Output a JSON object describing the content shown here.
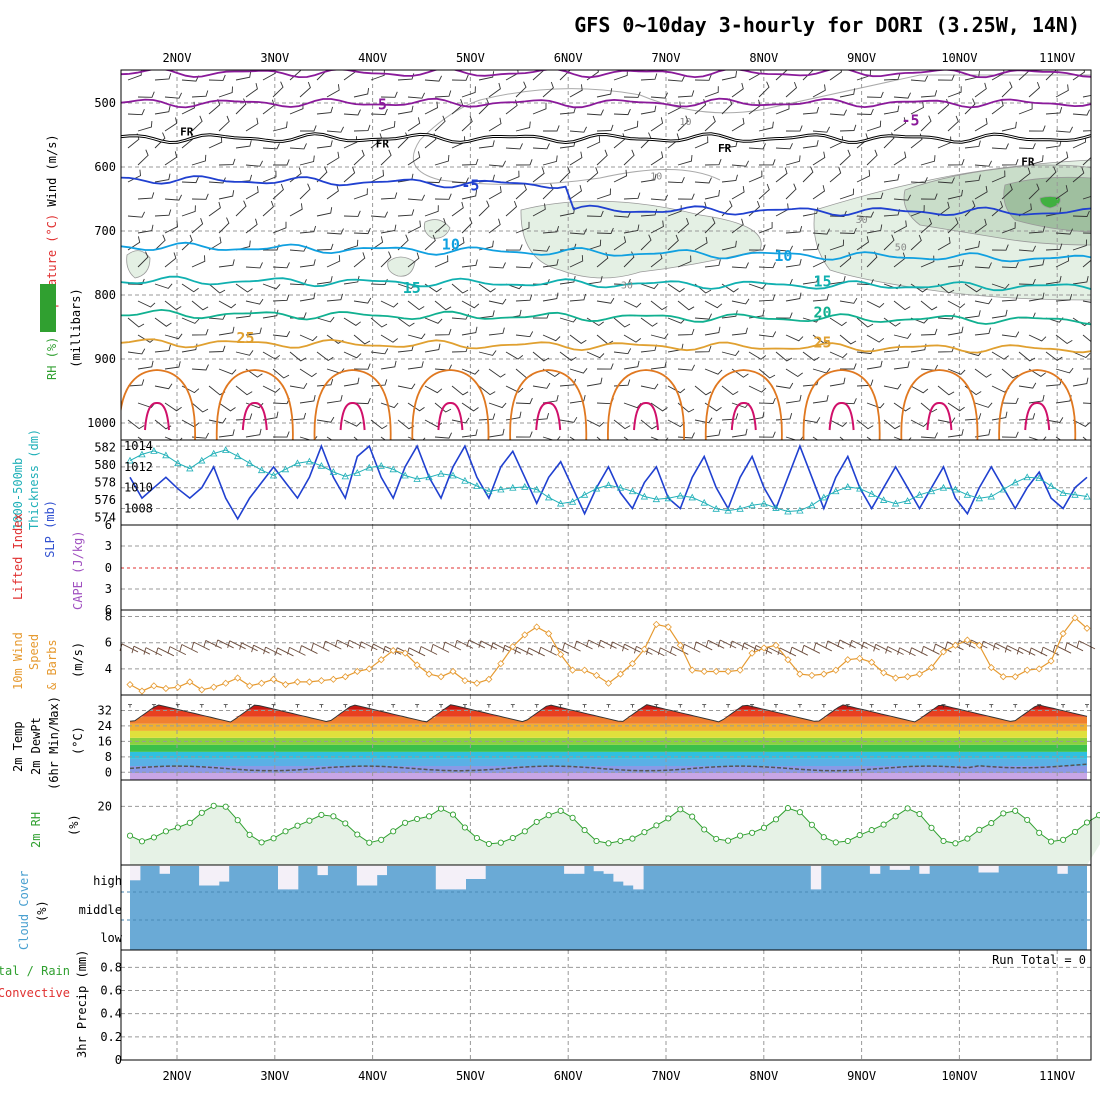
{
  "chart_data": {
    "type": "meteogram",
    "title": "GFS 0~10day 3-hourly for DORI (3.25W, 14N)",
    "x_labels": [
      "2NOV",
      "3NOV",
      "4NOV",
      "5NOV",
      "6NOV",
      "7NOV",
      "8NOV",
      "9NOV",
      "10NOV",
      "11NOV"
    ],
    "colors": {
      "green": "#30a030",
      "orange": "#e69a30",
      "red": "#e03030",
      "blue": "#3050d0",
      "cyan": "#20b0b8",
      "purple": "#a050c0",
      "cloud": "#6aaad6",
      "rh_fill": "#e6f2e6"
    },
    "upper_air": {
      "y_label_segments": [
        {
          "text": "RH (%)",
          "color": "#30a030"
        },
        {
          "text": "Temperature (°C)",
          "color": "#e03030"
        },
        {
          "text": "Wind (m/s)",
          "color": "#000000"
        }
      ],
      "y_label_2": "(millibars)",
      "pressure_ticks": [
        500,
        600,
        700,
        800,
        900,
        1000
      ],
      "contour_labels": [
        {
          "text": "5",
          "p": 503,
          "day": 2.1,
          "color": "#8a1a9a"
        },
        {
          "text": "-5",
          "p": 528,
          "day": 7.5,
          "color": "#8a1a9a"
        },
        {
          "text": "FR",
          "p": 546,
          "day": 0.1,
          "color": "#000000"
        },
        {
          "text": "FR",
          "p": 565,
          "day": 2.1,
          "color": "#000000"
        },
        {
          "text": "FR",
          "p": 572,
          "day": 5.6,
          "color": "#000000"
        },
        {
          "text": "FR",
          "p": 593,
          "day": 8.7,
          "color": "#000000"
        },
        {
          "text": "-5",
          "p": 630,
          "day": 3.0,
          "color": "#2040d0"
        },
        {
          "text": "10",
          "p": 722,
          "day": 2.8,
          "color": "#10a0e0"
        },
        {
          "text": "10",
          "p": 740,
          "day": 6.2,
          "color": "#10a0e0"
        },
        {
          "text": "15",
          "p": 790,
          "day": 2.4,
          "color": "#10b0b0"
        },
        {
          "text": "15",
          "p": 780,
          "day": 6.6,
          "color": "#10b0b0"
        },
        {
          "text": "20",
          "p": 828,
          "day": 6.6,
          "color": "#10b090"
        },
        {
          "text": "25",
          "p": 868,
          "day": 0.7,
          "color": "#e0a030"
        },
        {
          "text": "25",
          "p": 875,
          "day": 6.6,
          "color": "#e0a030"
        }
      ],
      "rh_contour_labels": [
        {
          "text": "10",
          "p": 530,
          "day": 5.2
        },
        {
          "text": "10",
          "p": 615,
          "day": 4.9
        },
        {
          "text": "30",
          "p": 785,
          "day": 4.6
        },
        {
          "text": "30",
          "p": 683,
          "day": 7.0
        },
        {
          "text": "50",
          "p": 726,
          "day": 7.4
        }
      ],
      "temperature_levels": [
        {
          "value": -10,
          "p": 453,
          "color": "#8a1a9a"
        },
        {
          "value": -5,
          "p": 500,
          "color": "#8a1a9a"
        },
        {
          "value": 0,
          "p": 555,
          "color": "#000000"
        },
        {
          "value": 5,
          "p": 620,
          "color": "#2040d0"
        },
        {
          "value": 10,
          "p": 725,
          "color": "#10a0e0"
        },
        {
          "value": 15,
          "p": 778,
          "color": "#10b0b0"
        },
        {
          "value": 20,
          "p": 830,
          "color": "#10b090"
        },
        {
          "value": 25,
          "p": 875,
          "color": "#e0a030"
        }
      ]
    },
    "slp_thickness": {
      "y_label_1": "1000-500mb",
      "y_label_2": "Thickness (dm)",
      "y_label_3": "SLP (mb)",
      "left_ticks": [
        574,
        576,
        578,
        580,
        582
      ],
      "left_range": [
        573.5,
        582.5
      ],
      "right_ticks": [
        1008,
        1010,
        1012,
        1014
      ],
      "right_range": [
        1006.7,
        1014.3
      ],
      "slp": [
        1011,
        1009,
        1010,
        1011,
        1009.9,
        1009,
        1010,
        1012,
        1009,
        1007,
        1009,
        1010.5,
        1012,
        1010.5,
        1009,
        1011,
        1014,
        1011,
        1009,
        1013,
        1014,
        1011,
        1009,
        1012,
        1014,
        1011,
        1009,
        1012,
        1014,
        1011,
        1009,
        1012,
        1013.5,
        1011,
        1008.5,
        1011,
        1012.5,
        1010,
        1007.5,
        1010,
        1012,
        1009.5,
        1008,
        1010.5,
        1012,
        1009,
        1008,
        1011,
        1013,
        1010,
        1008,
        1011,
        1013,
        1010,
        1008,
        1011,
        1014,
        1011,
        1008,
        1011,
        1013,
        1010,
        1008,
        1010,
        1012,
        1010,
        1008,
        1010,
        1012,
        1009,
        1007.5,
        1010,
        1012,
        1010,
        1008,
        1010,
        1011.5,
        1009,
        1008,
        1010,
        1011
      ],
      "thickness": [
        580.5,
        581.2,
        581.6,
        581.1,
        580.2,
        579.6,
        580.5,
        581.3,
        581.7,
        581.0,
        580.2,
        579.4,
        578.8,
        579.5,
        580.2,
        580.4,
        579.9,
        579.2,
        578.7,
        579.1,
        579.7,
        579.9,
        579.5,
        578.8,
        578.4,
        578.6,
        579.0,
        578.8,
        578.2,
        577.6,
        577.0,
        577.2,
        577.4,
        577.5,
        577.2,
        576.3,
        575.6,
        575.8,
        576.6,
        577.3,
        577.7,
        577.4,
        577.0,
        576.4,
        576.1,
        576.2,
        576.5,
        576.3,
        575.7,
        575.0,
        574.8,
        575.0,
        575.4,
        575.6,
        575.1,
        574.7,
        574.8,
        575.4,
        576.3,
        577.0,
        577.5,
        577.3,
        576.7,
        576.0,
        575.6,
        575.9,
        576.6,
        577.0,
        577.4,
        577.2,
        576.6,
        576.2,
        576.4,
        577.2,
        578.0,
        578.6,
        578.5,
        577.6,
        576.8,
        576.6,
        576.4
      ]
    },
    "stability": {
      "y_label_1": "Lifted Index",
      "y_label_2": "CAPE (J/kg)",
      "ticks": [
        "6",
        "3",
        "0",
        "3",
        "6"
      ],
      "lifted_index_zero": 0
    },
    "wind10m": {
      "y_label_1": "10m Wind",
      "y_label_2": "Speed",
      "y_label_3": "& Barbs",
      "units": "(m/s)",
      "ticks": [
        4,
        6,
        8
      ],
      "range": [
        2,
        8.5
      ],
      "speed": [
        2.8,
        2.3,
        2.7,
        2.5,
        2.6,
        3.0,
        2.4,
        2.6,
        2.9,
        3.3,
        2.7,
        2.9,
        3.2,
        2.8,
        3.0,
        3.0,
        3.1,
        3.2,
        3.4,
        3.8,
        4.0,
        4.7,
        5.4,
        5.2,
        4.3,
        3.6,
        3.4,
        3.8,
        3.1,
        2.9,
        3.2,
        4.4,
        5.7,
        6.6,
        7.2,
        6.7,
        5.1,
        3.9,
        3.9,
        3.5,
        2.9,
        3.6,
        4.4,
        5.5,
        7.4,
        7.2,
        5.8,
        3.9,
        3.8,
        3.8,
        3.8,
        3.9,
        5.2,
        5.6,
        5.8,
        4.7,
        3.6,
        3.5,
        3.6,
        3.9,
        4.7,
        4.8,
        4.5,
        3.7,
        3.3,
        3.4,
        3.6,
        4.1,
        5.3,
        5.8,
        6.2,
        5.8,
        4.1,
        3.4,
        3.4,
        3.9,
        4.0,
        4.6,
        6.7,
        7.9,
        7.1
      ],
      "barb_row_value": 5.6
    },
    "temp2m": {
      "y_label_1": "2m Temp",
      "y_label_2": "2m DewPt",
      "y_label_3": "(6hr Min/Max)",
      "units": "(°C)",
      "ticks": [
        0,
        8,
        16,
        24,
        32
      ],
      "range": [
        -4,
        40
      ],
      "daily_min": 26,
      "daily_max": 35,
      "dewpoint_mean": 2,
      "band_colors": [
        "#c8a6e6",
        "#8a9ae6",
        "#5ab0e6",
        "#30c0e0",
        "#3cc04a",
        "#8ad040",
        "#e0e03c",
        "#f0b030",
        "#f08030",
        "#e84020",
        "#c81810"
      ]
    },
    "rh2m": {
      "y_label": "2m RH",
      "units": "(%)",
      "ticks": [
        20
      ],
      "range": [
        0,
        29
      ],
      "values": [
        10.0,
        8.1,
        9.4,
        11.5,
        12.8,
        14.4,
        17.8,
        20.2,
        19.9,
        15.3,
        10.3,
        7.7,
        9.1,
        11.5,
        13.4,
        15.1,
        17.1,
        16.6,
        14.2,
        10.4,
        7.6,
        8.6,
        11.5,
        14.4,
        15.7,
        16.6,
        19.2,
        17.2,
        12.8,
        9.2,
        7.2,
        7.6,
        9.2,
        11.5,
        14.7,
        17.0,
        18.5,
        16.1,
        11.9,
        8.2,
        7.4,
        8.2,
        9.0,
        11.2,
        13.5,
        15.9,
        19.0,
        16.5,
        12.1,
        8.9,
        8.3,
        10.0,
        11.0,
        12.7,
        15.6,
        19.4,
        18.0,
        13.7,
        9.5,
        7.7,
        8.2,
        10.2,
        11.9,
        13.8,
        16.6,
        19.3,
        17.4,
        12.7,
        8.2,
        7.4,
        9.0,
        12.0,
        14.3,
        17.6,
        18.5,
        15.4,
        11.0,
        8.0,
        8.6,
        11.3,
        14.5,
        17.0,
        21.5,
        24.3,
        26.1
      ]
    },
    "cloud": {
      "y_label_1": "Cloud Cover",
      "y_label_2": "(%)",
      "levels": [
        "high",
        "middle",
        "low"
      ],
      "high_gaps": [
        0.55,
        0.0,
        0.0,
        0.3,
        0.0,
        0.0,
        0.0,
        0.75,
        0.75,
        0.6,
        0.0,
        0.0,
        0.0,
        0.0,
        0.0,
        0.9,
        0.9,
        0.0,
        0.0,
        0.35,
        0.0,
        0.0,
        0.0,
        0.75,
        0.75,
        0.35,
        0.0,
        0.0,
        0.0,
        0.0,
        0.0,
        0.9,
        0.9,
        0.9,
        0.5,
        0.5,
        0.0,
        0.0,
        0.0,
        0.0,
        0.0,
        0.0,
        0.0,
        0.0,
        0.3,
        0.3,
        0.0,
        0.2,
        0.3,
        0.6,
        0.75,
        0.9,
        0.0,
        0.0,
        0.0,
        0.0,
        0.0,
        0.0,
        0.0,
        0.0,
        0.0,
        0.0,
        0.0,
        0.0,
        0.0,
        0.0,
        0.0,
        0.0,
        0.0,
        0.9,
        0.0,
        0.0,
        0.0,
        0.0,
        0.0,
        0.3,
        0.0,
        0.15,
        0.15,
        0.0,
        0.3,
        0.0,
        0.0,
        0.0,
        0.0,
        0.0,
        0.25,
        0.25,
        0.0,
        0.0,
        0.0,
        0.0,
        0.0,
        0.0,
        0.3,
        0.0,
        0.0
      ]
    },
    "precip": {
      "y_label_1": "Total / Rain",
      "y_label_2": "Convective",
      "y_label_3": "3hr Precip (mm)",
      "ticks": [
        "0",
        "0.2",
        "0.4",
        "0.6",
        "0.8"
      ],
      "range": [
        0,
        0.95
      ],
      "run_total": "Run Total = 0"
    }
  }
}
